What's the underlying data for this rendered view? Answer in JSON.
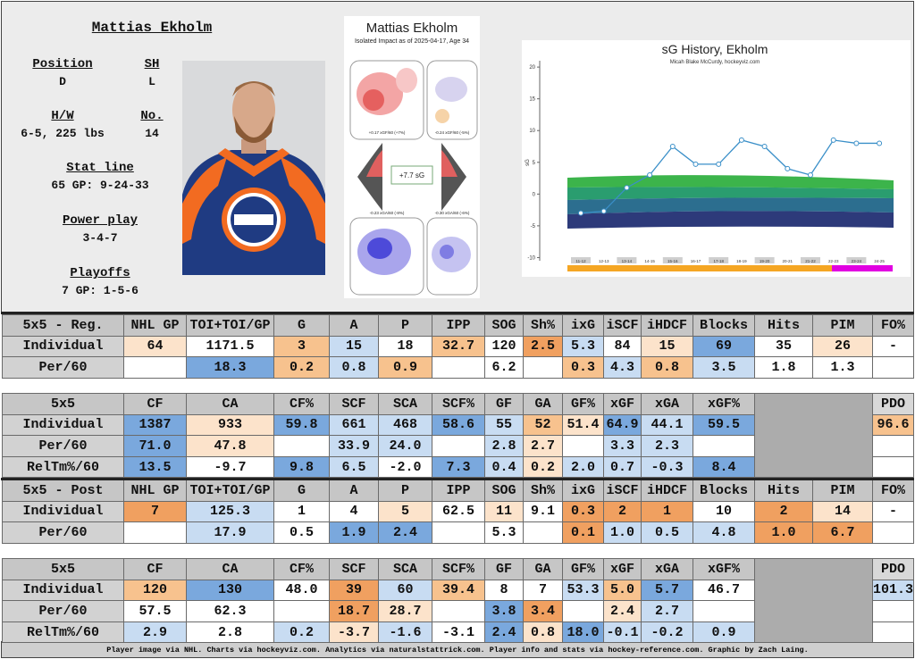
{
  "info": {
    "name": "Mattias Ekholm",
    "fields": [
      {
        "label": "Position",
        "value": "D"
      },
      {
        "label": "SH",
        "value": "L"
      },
      {
        "label": "H/W",
        "value": "6-5, 225 lbs"
      },
      {
        "label": "No.",
        "value": "14"
      },
      {
        "label": "Stat line",
        "value": "65 GP: 9-24-33"
      },
      {
        "label": "Power play",
        "value": "3-4-7"
      },
      {
        "label": "Playoffs",
        "value": "7 GP: 1-5-6"
      }
    ]
  },
  "impact_chart": {
    "title": "Mattias Ekholm",
    "subtitle": "Isolated Impact as of 2025-04-17, Age 34",
    "total": "+7.7 sG",
    "rink_labels": [
      "+0.17 xGF/60 (+7%)",
      "-0.24 xGF/60 (-5%)",
      "-0.23 xGA/60 (-8%)",
      "-0.30 xGA/60 (-6%)"
    ]
  },
  "chart_data": {
    "type": "line",
    "title": "sG History, Ekholm",
    "subtitle": "Micah Blake McCurdy, hockeyviz.com",
    "y_label": "sG",
    "categories": [
      "11-12",
      "12-13",
      "13-14",
      "14-15",
      "15-16",
      "16-17",
      "17-18",
      "18-19",
      "19-20",
      "20-21",
      "21-22",
      "22-23",
      "23-24",
      "24-25"
    ],
    "values": [
      -3,
      -2.7,
      1,
      3,
      7.5,
      4.7,
      4.7,
      8.5,
      7.5,
      4,
      3,
      8.5,
      8,
      8
    ],
    "color": "#3a8fc8",
    "ylim": [
      -10.5,
      21
    ],
    "yticks": [
      -10,
      -5,
      0,
      5,
      10,
      15,
      20
    ]
  },
  "tables": [
    {
      "header": [
        "5x5 - Reg.",
        "NHL GP",
        "TOI+TOI/GP",
        "G",
        "A",
        "P",
        "IPP",
        "SOG",
        "Sh%",
        "ixG",
        "iSCF",
        "iHDCF",
        "Blocks",
        "Hits",
        "PIM",
        "FO%"
      ],
      "rows": [
        {
          "label": "Individual",
          "cells": [
            "64",
            "1171.5",
            "3",
            "15",
            "18",
            "32.7",
            "120",
            "2.5",
            "5.3",
            "84",
            "15",
            "69",
            "35",
            "26",
            "-"
          ],
          "colors": [
            "#fce3cb",
            "#ffffff",
            "#f7c28e",
            "#c8dcf2",
            "#ffffff",
            "#f7c28e",
            "#ffffff",
            "#f0a060",
            "#c8dcf2",
            "#ffffff",
            "#fce3cb",
            "#7aa8dd",
            "#ffffff",
            "#fce3cb",
            "#ffffff"
          ]
        },
        {
          "label": "Per/60",
          "cells": [
            null,
            "18.3",
            "0.2",
            "0.8",
            "0.9",
            null,
            "6.2",
            null,
            "0.3",
            "4.3",
            "0.8",
            "3.5",
            "1.8",
            "1.3",
            null
          ],
          "colors": [
            "#ffffff",
            "#7aa8dd",
            "#f7c28e",
            "#c8dcf2",
            "#f7c28e",
            "#ffffff",
            "#ffffff",
            "#ffffff",
            "#f7c28e",
            "#c8dcf2",
            "#f7c28e",
            "#c8dcf2",
            "#ffffff",
            "#ffffff",
            "#ffffff"
          ]
        }
      ]
    },
    {
      "header": [
        "5x5",
        "CF",
        "CA",
        "CF%",
        "SCF",
        "SCA",
        "SCF%",
        "GF",
        "GA",
        "GF%",
        "xGF",
        "xGA",
        "xGF%"
      ],
      "pdo": {
        "header": "PDO",
        "value": "96.6",
        "color": "#f7c28e"
      },
      "rows": [
        {
          "label": "Individual",
          "cells": [
            "1387",
            "933",
            "59.8",
            "661",
            "468",
            "58.6",
            "55",
            "52",
            "51.4",
            "64.9",
            "44.1",
            "59.5"
          ],
          "colors": [
            "#7aa8dd",
            "#fce3cb",
            "#7aa8dd",
            "#c8dcf2",
            "#c8dcf2",
            "#7aa8dd",
            "#c8dcf2",
            "#f7c28e",
            "#fce3cb",
            "#7aa8dd",
            "#c8dcf2",
            "#7aa8dd"
          ]
        },
        {
          "label": "Per/60",
          "cells": [
            "71.0",
            "47.8",
            null,
            "33.9",
            "24.0",
            null,
            "2.8",
            "2.7",
            null,
            "3.3",
            "2.3",
            null
          ],
          "colors": [
            "#7aa8dd",
            "#fce3cb",
            "#ffffff",
            "#c8dcf2",
            "#c8dcf2",
            "#ffffff",
            "#c8dcf2",
            "#fce3cb",
            "#ffffff",
            "#c8dcf2",
            "#c8dcf2",
            "#ffffff"
          ]
        },
        {
          "label": "RelTm%/60",
          "cells": [
            "13.5",
            "-9.7",
            "9.8",
            "6.5",
            "-2.0",
            "7.3",
            "0.4",
            "0.2",
            "2.0",
            "0.7",
            "-0.3",
            "8.4"
          ],
          "colors": [
            "#7aa8dd",
            "#ffffff",
            "#7aa8dd",
            "#c8dcf2",
            "#ffffff",
            "#7aa8dd",
            "#c8dcf2",
            "#fce3cb",
            "#c8dcf2",
            "#c8dcf2",
            "#c8dcf2",
            "#7aa8dd"
          ]
        }
      ]
    },
    {
      "header": [
        "5x5 - Post",
        "NHL GP",
        "TOI+TOI/GP",
        "G",
        "A",
        "P",
        "IPP",
        "SOG",
        "Sh%",
        "ixG",
        "iSCF",
        "iHDCF",
        "Blocks",
        "Hits",
        "PIM",
        "FO%"
      ],
      "rows": [
        {
          "label": "Individual",
          "cells": [
            "7",
            "125.3",
            "1",
            "4",
            "5",
            "62.5",
            "11",
            "9.1",
            "0.3",
            "2",
            "1",
            "10",
            "2",
            "14",
            "-"
          ],
          "colors": [
            "#f0a060",
            "#c8dcf2",
            "#ffffff",
            "#ffffff",
            "#fce3cb",
            "#ffffff",
            "#fce3cb",
            "#ffffff",
            "#f0a060",
            "#f0a060",
            "#f0a060",
            "#ffffff",
            "#f0a060",
            "#fce3cb",
            "#ffffff"
          ]
        },
        {
          "label": "Per/60",
          "cells": [
            null,
            "17.9",
            "0.5",
            "1.9",
            "2.4",
            null,
            "5.3",
            null,
            "0.1",
            "1.0",
            "0.5",
            "4.8",
            "1.0",
            "6.7",
            null
          ],
          "colors": [
            "#ffffff",
            "#c8dcf2",
            "#ffffff",
            "#7aa8dd",
            "#7aa8dd",
            "#ffffff",
            "#ffffff",
            "#ffffff",
            "#f0a060",
            "#c8dcf2",
            "#c8dcf2",
            "#c8dcf2",
            "#f0a060",
            "#f0a060",
            "#ffffff"
          ]
        }
      ]
    },
    {
      "header": [
        "5x5",
        "CF",
        "CA",
        "CF%",
        "SCF",
        "SCA",
        "SCF%",
        "GF",
        "GA",
        "GF%",
        "xGF",
        "xGA",
        "xGF%"
      ],
      "pdo": {
        "header": "PDO",
        "value": "101.3",
        "color": "#c8dcf2"
      },
      "rows": [
        {
          "label": "Individual",
          "cells": [
            "120",
            "130",
            "48.0",
            "39",
            "60",
            "39.4",
            "8",
            "7",
            "53.3",
            "5.0",
            "5.7",
            "46.7"
          ],
          "colors": [
            "#f7c28e",
            "#7aa8dd",
            "#ffffff",
            "#f0a060",
            "#c8dcf2",
            "#f7c28e",
            "#ffffff",
            "#ffffff",
            "#c8dcf2",
            "#f7c28e",
            "#7aa8dd",
            "#ffffff"
          ]
        },
        {
          "label": "Per/60",
          "cells": [
            "57.5",
            "62.3",
            null,
            "18.7",
            "28.7",
            null,
            "3.8",
            "3.4",
            null,
            "2.4",
            "2.7",
            null
          ],
          "colors": [
            "#ffffff",
            "#ffffff",
            "#ffffff",
            "#f0a060",
            "#fce3cb",
            "#ffffff",
            "#7aa8dd",
            "#f0a060",
            "#ffffff",
            "#fce3cb",
            "#c8dcf2",
            "#ffffff"
          ]
        },
        {
          "label": "RelTm%/60",
          "cells": [
            "2.9",
            "2.8",
            "0.2",
            "-3.7",
            "-1.6",
            "-3.1",
            "2.4",
            "0.8",
            "18.0",
            "-0.1",
            "-0.2",
            "0.9"
          ],
          "colors": [
            "#c8dcf2",
            "#ffffff",
            "#c8dcf2",
            "#fce3cb",
            "#c8dcf2",
            "#ffffff",
            "#7aa8dd",
            "#fce3cb",
            "#7aa8dd",
            "#c8dcf2",
            "#c8dcf2",
            "#c8dcf2"
          ]
        }
      ]
    }
  ],
  "footer": "Player image via NHL. Charts via hockeyviz.com. Analytics via naturalstattrick.com. Player info and stats via hockey-reference.com. Graphic by Zach Laing."
}
